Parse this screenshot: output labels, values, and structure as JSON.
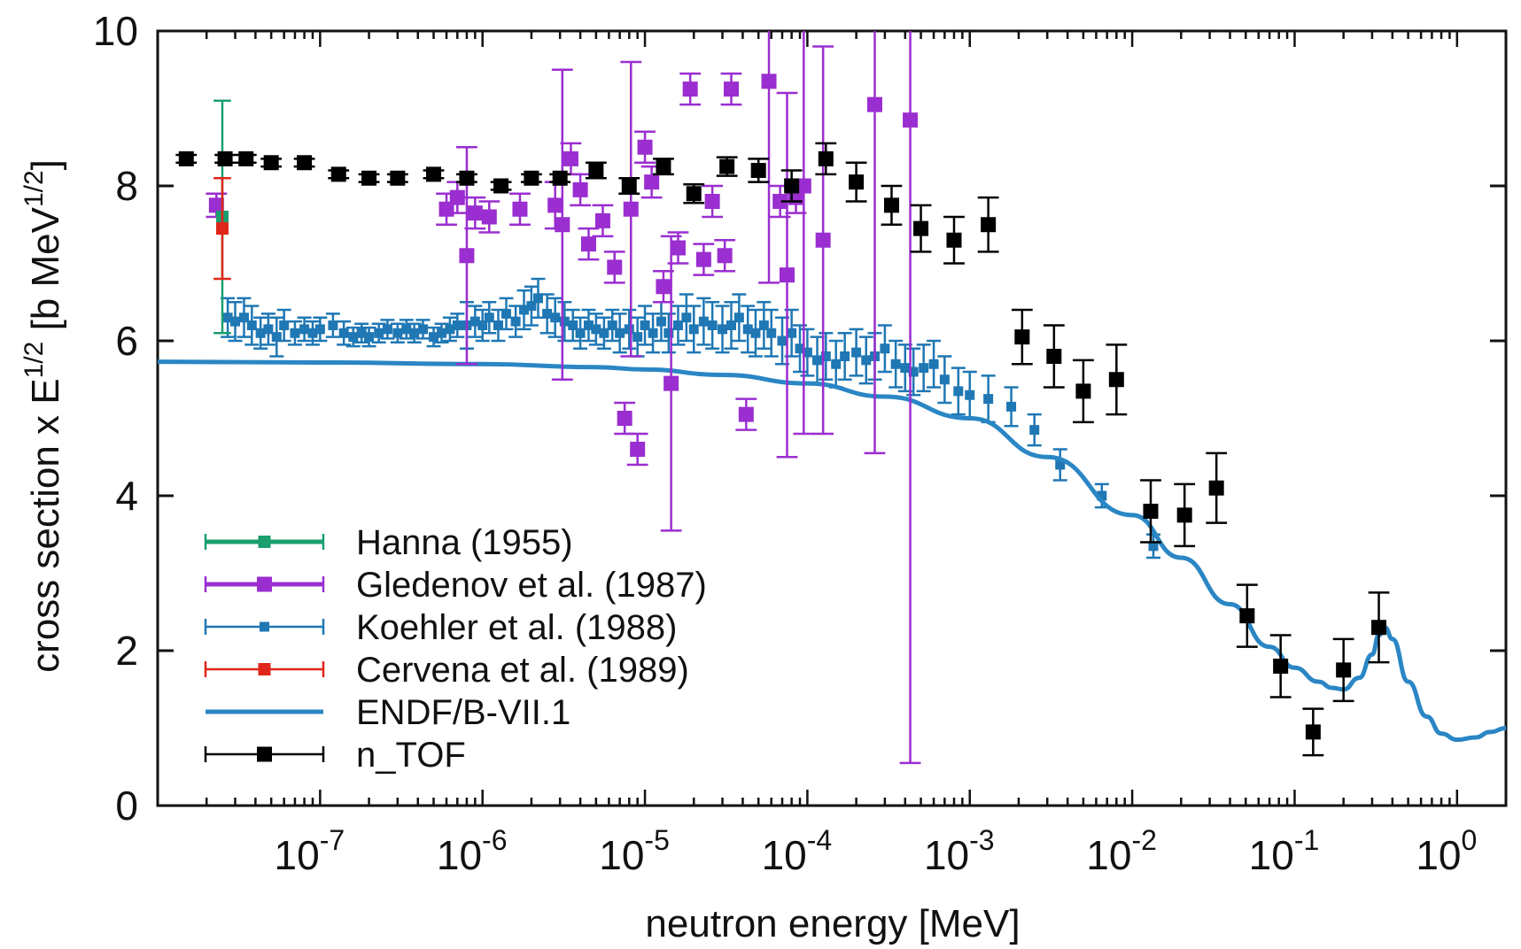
{
  "chart_data": {
    "type": "scatter",
    "xlabel": "neutron energy [MeV]",
    "ylabel_main": "cross section x E",
    "ylabel_sup1": "1/2",
    "ylabel_units": " [b MeV",
    "ylabel_sup2": "1/2",
    "ylabel_close": "]",
    "xscale": "log",
    "xlim": [
      1e-08,
      2
    ],
    "ylim": [
      0,
      10
    ],
    "y_ticks": [
      0,
      2,
      4,
      6,
      8,
      10
    ],
    "x_ticks": [
      {
        "value": 1e-07,
        "base": "10",
        "exp": "-7"
      },
      {
        "value": 1e-06,
        "base": "10",
        "exp": "-6"
      },
      {
        "value": 1e-05,
        "base": "10",
        "exp": "-5"
      },
      {
        "value": 0.0001,
        "base": "10",
        "exp": "-4"
      },
      {
        "value": 0.001,
        "base": "10",
        "exp": "-3"
      },
      {
        "value": 0.01,
        "base": "10",
        "exp": "-2"
      },
      {
        "value": 0.1,
        "base": "10",
        "exp": "-1"
      },
      {
        "value": 1,
        "base": "10",
        "exp": "0"
      }
    ],
    "legend_position": "bottom-left",
    "series": [
      {
        "name": "Hanna (1955)",
        "kind": "points",
        "color": "#1a9e6e",
        "marker": 14,
        "points": [
          [
            2.5e-08,
            7.6,
            1.5
          ]
        ]
      },
      {
        "name": "Gledenov et al. (1987)",
        "kind": "points",
        "color": "#9a2ed0",
        "marker": 17,
        "points": [
          [
            2.3e-08,
            7.75,
            0.15
          ],
          [
            6e-07,
            7.7,
            0.2
          ],
          [
            7e-07,
            7.85,
            0.2
          ],
          [
            8e-07,
            7.1,
            1.4
          ],
          [
            9e-07,
            7.65,
            0.2
          ],
          [
            1.1e-06,
            7.6,
            0.2
          ],
          [
            1.7e-06,
            7.7,
            0.2
          ],
          [
            2.8e-06,
            7.75,
            0.3
          ],
          [
            3.1e-06,
            7.5,
            2.0
          ],
          [
            3.5e-06,
            8.35,
            0.2
          ],
          [
            4e-06,
            7.95,
            0.2
          ],
          [
            4.5e-06,
            7.25,
            0.2
          ],
          [
            5.5e-06,
            7.55,
            0.2
          ],
          [
            6.5e-06,
            6.95,
            0.2
          ],
          [
            7.5e-06,
            5.0,
            0.2
          ],
          [
            8.2e-06,
            7.7,
            1.9
          ],
          [
            9e-06,
            4.6,
            0.2
          ],
          [
            1e-05,
            8.5,
            0.2
          ],
          [
            1.1e-05,
            8.05,
            0.2
          ],
          [
            1.3e-05,
            6.7,
            0.2
          ],
          [
            1.45e-05,
            5.45,
            1.9
          ],
          [
            1.6e-05,
            7.2,
            0.2
          ],
          [
            1.9e-05,
            9.25,
            0.2
          ],
          [
            2.3e-05,
            7.05,
            0.2
          ],
          [
            2.6e-05,
            7.8,
            0.2
          ],
          [
            3.1e-05,
            7.1,
            0.2
          ],
          [
            3.4e-05,
            9.25,
            0.2
          ],
          [
            4.2e-05,
            5.05,
            0.2
          ],
          [
            5.8e-05,
            9.35,
            2.6
          ],
          [
            6.8e-05,
            7.8,
            0.2
          ],
          [
            7.5e-05,
            6.85,
            2.35
          ],
          [
            8.5e-05,
            7.85,
            0.2
          ],
          [
            9.5e-05,
            8.0,
            3.2
          ],
          [
            0.000125,
            7.3,
            2.5
          ],
          [
            0.00026,
            9.05,
            4.5
          ],
          [
            0.00043,
            8.85,
            8.3
          ]
        ]
      },
      {
        "name": "Koehler et al. (1988)",
        "kind": "points",
        "color": "#1f77b4",
        "marker": 11,
        "points": [
          [
            2.7e-08,
            6.3,
            0.25
          ],
          [
            3e-08,
            6.25,
            0.25
          ],
          [
            3.4e-08,
            6.3,
            0.25
          ],
          [
            3.8e-08,
            6.2,
            0.25
          ],
          [
            4.3e-08,
            6.1,
            0.2
          ],
          [
            4.8e-08,
            6.15,
            0.2
          ],
          [
            5.4e-08,
            6.05,
            0.25
          ],
          [
            6e-08,
            6.2,
            0.2
          ],
          [
            7e-08,
            6.1,
            0.15
          ],
          [
            8e-08,
            6.15,
            0.15
          ],
          [
            9e-08,
            6.1,
            0.15
          ],
          [
            1e-07,
            6.15,
            0.15
          ],
          [
            1.2e-07,
            6.2,
            0.15
          ],
          [
            1.4e-07,
            6.1,
            0.15
          ],
          [
            1.6e-07,
            6.05,
            0.12
          ],
          [
            1.8e-07,
            6.1,
            0.12
          ],
          [
            2e-07,
            6.05,
            0.12
          ],
          [
            2.3e-07,
            6.1,
            0.12
          ],
          [
            2.6e-07,
            6.15,
            0.12
          ],
          [
            3e-07,
            6.1,
            0.12
          ],
          [
            3.4e-07,
            6.15,
            0.12
          ],
          [
            3.8e-07,
            6.1,
            0.12
          ],
          [
            4.3e-07,
            6.15,
            0.12
          ],
          [
            5e-07,
            6.05,
            0.12
          ],
          [
            5.6e-07,
            6.1,
            0.12
          ],
          [
            6.3e-07,
            6.15,
            0.15
          ],
          [
            7e-07,
            6.2,
            0.15
          ],
          [
            8e-07,
            6.2,
            0.3
          ],
          [
            9e-07,
            6.25,
            0.2
          ],
          [
            1e-06,
            6.2,
            0.2
          ],
          [
            1.1e-06,
            6.3,
            0.2
          ],
          [
            1.25e-06,
            6.2,
            0.2
          ],
          [
            1.4e-06,
            6.35,
            0.2
          ],
          [
            1.6e-06,
            6.25,
            0.2
          ],
          [
            1.8e-06,
            6.4,
            0.25
          ],
          [
            2e-06,
            6.45,
            0.25
          ],
          [
            2.2e-06,
            6.55,
            0.25
          ],
          [
            2.5e-06,
            6.35,
            0.25
          ],
          [
            2.8e-06,
            6.3,
            0.25
          ],
          [
            3.2e-06,
            6.25,
            0.25
          ],
          [
            3.6e-06,
            6.2,
            0.2
          ],
          [
            4e-06,
            6.1,
            0.2
          ],
          [
            4.5e-06,
            6.2,
            0.2
          ],
          [
            5e-06,
            6.15,
            0.2
          ],
          [
            5.6e-06,
            6.1,
            0.2
          ],
          [
            6.3e-06,
            6.2,
            0.2
          ],
          [
            7e-06,
            6.1,
            0.25
          ],
          [
            8e-06,
            6.15,
            0.25
          ],
          [
            9e-06,
            6.05,
            0.25
          ],
          [
            1e-05,
            6.2,
            0.25
          ],
          [
            1.12e-05,
            6.1,
            0.25
          ],
          [
            1.26e-05,
            6.25,
            0.25
          ],
          [
            1.4e-05,
            6.1,
            0.25
          ],
          [
            1.6e-05,
            6.2,
            0.25
          ],
          [
            1.8e-05,
            6.3,
            0.3
          ],
          [
            2e-05,
            6.15,
            0.3
          ],
          [
            2.3e-05,
            6.25,
            0.3
          ],
          [
            2.6e-05,
            6.2,
            0.3
          ],
          [
            3e-05,
            6.15,
            0.3
          ],
          [
            3.4e-05,
            6.2,
            0.3
          ],
          [
            3.8e-05,
            6.3,
            0.3
          ],
          [
            4.3e-05,
            6.15,
            0.3
          ],
          [
            4.8e-05,
            6.1,
            0.3
          ],
          [
            5.4e-05,
            6.2,
            0.3
          ],
          [
            6e-05,
            6.1,
            0.3
          ],
          [
            7e-05,
            6.0,
            0.3
          ],
          [
            8e-05,
            6.1,
            0.3
          ],
          [
            9e-05,
            5.9,
            0.3
          ],
          [
            0.0001,
            5.85,
            0.3
          ],
          [
            0.000115,
            5.75,
            0.3
          ],
          [
            0.00013,
            5.8,
            0.3
          ],
          [
            0.00015,
            5.7,
            0.3
          ],
          [
            0.00017,
            5.8,
            0.3
          ],
          [
            0.0002,
            5.85,
            0.3
          ],
          [
            0.00023,
            5.75,
            0.3
          ],
          [
            0.00026,
            5.8,
            0.3
          ],
          [
            0.0003,
            5.9,
            0.3
          ],
          [
            0.00035,
            5.7,
            0.3
          ],
          [
            0.0004,
            5.65,
            0.3
          ],
          [
            0.00045,
            5.6,
            0.3
          ],
          [
            0.00052,
            5.65,
            0.3
          ],
          [
            0.0006,
            5.7,
            0.3
          ],
          [
            0.0007,
            5.5,
            0.3
          ],
          [
            0.00085,
            5.35,
            0.3
          ],
          [
            0.001,
            5.3,
            0.3
          ],
          [
            0.0013,
            5.25,
            0.3
          ],
          [
            0.0018,
            5.15,
            0.25
          ],
          [
            0.0025,
            4.85,
            0.2
          ],
          [
            0.0036,
            4.4,
            0.2
          ],
          [
            0.0065,
            4.0,
            0.15
          ],
          [
            0.0135,
            3.35,
            0.15
          ]
        ]
      },
      {
        "name": "Cervena et al. (1989)",
        "kind": "points",
        "color": "#e0261a",
        "marker": 14,
        "points": [
          [
            2.5e-08,
            7.45,
            0.65
          ]
        ]
      },
      {
        "name": "ENDF/B-VII.1",
        "kind": "line",
        "color": "#2a86c4",
        "width": 5,
        "points": [
          [
            1e-08,
            5.73
          ],
          [
            1e-07,
            5.72
          ],
          [
            1e-06,
            5.7
          ],
          [
            5e-06,
            5.66
          ],
          [
            1e-05,
            5.63
          ],
          [
            3e-05,
            5.56
          ],
          [
            0.0001,
            5.45
          ],
          [
            0.0003,
            5.28
          ],
          [
            0.001,
            5.0
          ],
          [
            0.003,
            4.5
          ],
          [
            0.01,
            3.75
          ],
          [
            0.02,
            3.2
          ],
          [
            0.04,
            2.6
          ],
          [
            0.07,
            2.05
          ],
          [
            0.1,
            1.78
          ],
          [
            0.14,
            1.6
          ],
          [
            0.17,
            1.52
          ],
          [
            0.2,
            1.5
          ],
          [
            0.25,
            1.65
          ],
          [
            0.3,
            1.95
          ],
          [
            0.33,
            2.2
          ],
          [
            0.36,
            2.3
          ],
          [
            0.4,
            2.15
          ],
          [
            0.5,
            1.6
          ],
          [
            0.65,
            1.15
          ],
          [
            0.8,
            0.93
          ],
          [
            1.0,
            0.85
          ],
          [
            1.3,
            0.88
          ],
          [
            1.6,
            0.95
          ],
          [
            2.0,
            1.0
          ]
        ]
      },
      {
        "name": "n_TOF",
        "kind": "points",
        "color": "#000000",
        "marker": 17,
        "points": [
          [
            1.5e-08,
            8.35,
            0.05
          ],
          [
            2.6e-08,
            8.35,
            0.05
          ],
          [
            3.5e-08,
            8.35,
            0.05
          ],
          [
            5e-08,
            8.3,
            0.05
          ],
          [
            8e-08,
            8.3,
            0.05
          ],
          [
            1.3e-07,
            8.15,
            0.05
          ],
          [
            2e-07,
            8.1,
            0.05
          ],
          [
            3e-07,
            8.1,
            0.05
          ],
          [
            5e-07,
            8.15,
            0.05
          ],
          [
            8e-07,
            8.1,
            0.05
          ],
          [
            1.3e-06,
            8.0,
            0.05
          ],
          [
            2e-06,
            8.1,
            0.05
          ],
          [
            3e-06,
            8.1,
            0.05
          ],
          [
            5e-06,
            8.2,
            0.1
          ],
          [
            8e-06,
            8.0,
            0.1
          ],
          [
            1.3e-05,
            8.25,
            0.1
          ],
          [
            2e-05,
            7.9,
            0.12
          ],
          [
            3.2e-05,
            8.25,
            0.12
          ],
          [
            5e-05,
            8.2,
            0.15
          ],
          [
            8e-05,
            8.0,
            0.2
          ],
          [
            0.00013,
            8.35,
            0.2
          ],
          [
            0.0002,
            8.05,
            0.25
          ],
          [
            0.00033,
            7.75,
            0.25
          ],
          [
            0.0005,
            7.45,
            0.3
          ],
          [
            0.0008,
            7.3,
            0.3
          ],
          [
            0.0013,
            7.5,
            0.35
          ],
          [
            0.0021,
            6.05,
            0.35
          ],
          [
            0.0033,
            5.8,
            0.4
          ],
          [
            0.005,
            5.35,
            0.4
          ],
          [
            0.008,
            5.5,
            0.45
          ],
          [
            0.013,
            3.8,
            0.4
          ],
          [
            0.021,
            3.75,
            0.4
          ],
          [
            0.033,
            4.1,
            0.45
          ],
          [
            0.051,
            2.45,
            0.4
          ],
          [
            0.082,
            1.8,
            0.4
          ],
          [
            0.13,
            0.95,
            0.3
          ],
          [
            0.2,
            1.75,
            0.4
          ],
          [
            0.33,
            2.3,
            0.45
          ]
        ]
      }
    ]
  }
}
